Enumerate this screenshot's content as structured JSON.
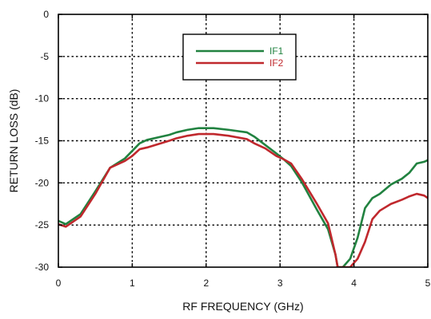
{
  "chart_data": {
    "type": "line",
    "xlabel": "RF FREQUENCY (GHz)",
    "ylabel": "RETURN LOSS (dB)",
    "xlim": [
      0,
      5
    ],
    "ylim": [
      -30,
      0
    ],
    "xticks": [
      0,
      1,
      2,
      3,
      4,
      5
    ],
    "yticks": [
      0,
      -5,
      -10,
      -15,
      -20,
      -25,
      -30
    ],
    "x_tick_labels": [
      "0",
      "1",
      "2",
      "3",
      "4",
      "5"
    ],
    "y_tick_labels": [
      "0",
      "-5",
      "-10",
      "-15",
      "-20",
      "-25",
      "-30"
    ],
    "grid": true,
    "legend_position": "top-center",
    "series": [
      {
        "name": "IF1",
        "color": "#218240",
        "x": [
          0,
          0.1,
          0.3,
          0.5,
          0.7,
          0.9,
          1.0,
          1.1,
          1.2,
          1.35,
          1.5,
          1.6,
          1.75,
          1.9,
          2.1,
          2.3,
          2.55,
          2.65,
          2.8,
          2.95,
          3.05,
          3.15,
          3.3,
          3.5,
          3.65,
          3.75,
          3.78,
          3.85,
          3.95,
          4.05,
          4.15,
          4.25,
          4.35,
          4.5,
          4.65,
          4.75,
          4.85,
          4.95,
          5.0
        ],
        "y": [
          -24.5,
          -24.9,
          -23.7,
          -21.0,
          -18.2,
          -17.1,
          -16.2,
          -15.3,
          -14.9,
          -14.6,
          -14.3,
          -14.0,
          -13.7,
          -13.5,
          -13.5,
          -13.7,
          -14.0,
          -14.5,
          -15.5,
          -16.5,
          -17.2,
          -18.0,
          -20.0,
          -23.2,
          -25.5,
          -28.5,
          -30.0,
          -30.0,
          -29.0,
          -26.5,
          -23.0,
          -21.8,
          -21.3,
          -20.2,
          -19.5,
          -18.8,
          -17.7,
          -17.5,
          -17.3
        ]
      },
      {
        "name": "IF2",
        "color": "#c0282d",
        "x": [
          0,
          0.1,
          0.3,
          0.5,
          0.7,
          0.9,
          1.0,
          1.1,
          1.2,
          1.35,
          1.5,
          1.6,
          1.75,
          1.9,
          2.1,
          2.3,
          2.55,
          2.65,
          2.8,
          2.95,
          3.05,
          3.15,
          3.3,
          3.5,
          3.65,
          3.75,
          3.78,
          3.85,
          3.95,
          4.05,
          4.15,
          4.25,
          4.35,
          4.5,
          4.65,
          4.75,
          4.85,
          4.95,
          5.0
        ],
        "y": [
          -24.9,
          -25.2,
          -24.0,
          -21.3,
          -18.2,
          -17.4,
          -16.8,
          -16.0,
          -15.8,
          -15.4,
          -15.0,
          -14.7,
          -14.4,
          -14.2,
          -14.2,
          -14.4,
          -14.8,
          -15.3,
          -15.9,
          -16.8,
          -17.2,
          -17.7,
          -19.6,
          -22.5,
          -24.8,
          -28.5,
          -30.0,
          -30.0,
          -30.0,
          -29.0,
          -27.0,
          -24.3,
          -23.3,
          -22.5,
          -22.0,
          -21.6,
          -21.3,
          -21.5,
          -21.8
        ]
      }
    ]
  }
}
